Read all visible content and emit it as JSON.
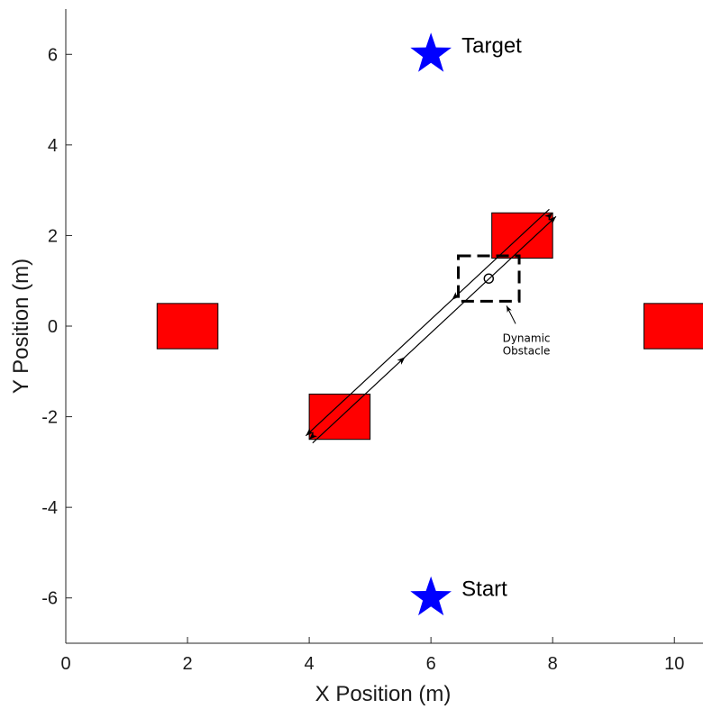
{
  "chart_data": {
    "type": "scatter",
    "title": "",
    "xlabel": "X Position (m)",
    "ylabel": "Y Position (m)",
    "xlim": [
      0,
      10.5
    ],
    "ylim": [
      -7,
      7
    ],
    "xticks": [
      0,
      2,
      4,
      6,
      8,
      10
    ],
    "yticks": [
      -6,
      -4,
      -2,
      0,
      2,
      4,
      6
    ],
    "grid": false,
    "legend": "none",
    "static_obstacles": [
      {
        "name": "obstacle-left",
        "x": [
          1.5,
          2.5
        ],
        "y": [
          -0.5,
          0.5
        ]
      },
      {
        "name": "obstacle-lower-middle",
        "x": [
          4,
          5
        ],
        "y": [
          -2.5,
          -1.5
        ]
      },
      {
        "name": "obstacle-upper-middle",
        "x": [
          7,
          8
        ],
        "y": [
          1.5,
          2.5
        ]
      },
      {
        "name": "obstacle-right",
        "x": [
          9.5,
          10.5
        ],
        "y": [
          -0.5,
          0.5
        ]
      }
    ],
    "obstacle_color": "#ff0000",
    "markers": [
      {
        "name": "start",
        "label": "Start",
        "x": 6,
        "y": -6,
        "color": "#0000ff",
        "shape": "star"
      },
      {
        "name": "target",
        "label": "Target",
        "x": 6,
        "y": 6,
        "color": "#0000ff",
        "shape": "star"
      }
    ],
    "dynamic_obstacle": {
      "label_line1": "Dynamic",
      "label_line2": "Obstacle",
      "center": [
        6.95,
        1.05
      ],
      "zone_x": [
        6.45,
        7.45
      ],
      "zone_y": [
        0.55,
        1.55
      ],
      "path_start": [
        4,
        -2.5
      ],
      "path_end": [
        8,
        2.5
      ]
    }
  }
}
